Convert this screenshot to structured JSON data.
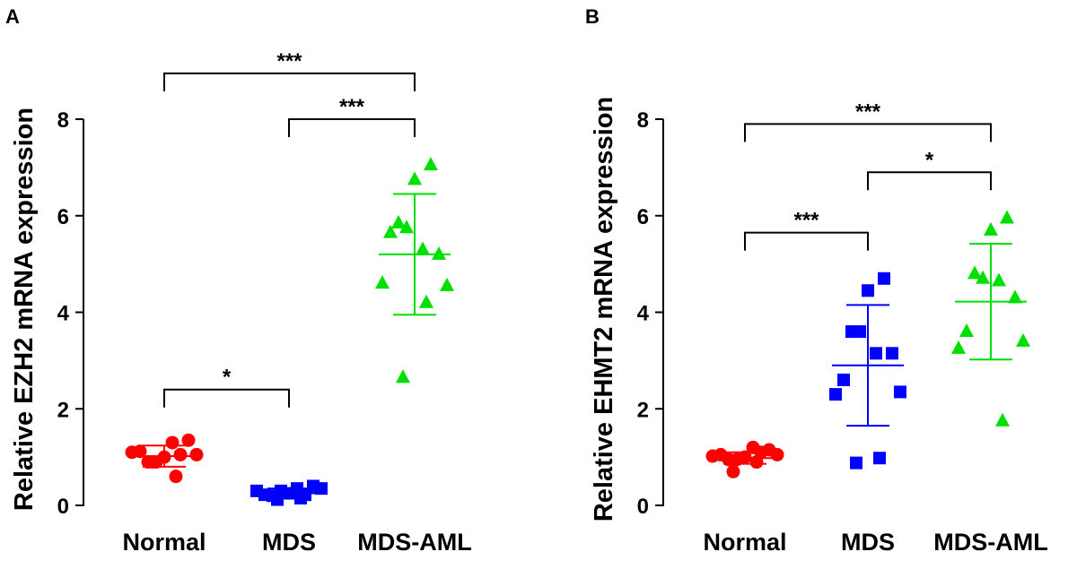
{
  "chart_data": [
    {
      "type": "scatter",
      "panel": "A",
      "ylabel": "Relative EZH2 mRNA expression",
      "xlabel": "",
      "ylim": [
        0,
        8
      ],
      "yticks": [
        0,
        2,
        4,
        6,
        8
      ],
      "categories": [
        "Normal",
        "MDS",
        "MDS-AML"
      ],
      "groups": [
        {
          "name": "Normal",
          "color": "#ff0000",
          "marker": "circle",
          "values": [
            1.0,
            1.05,
            0.9,
            0.9,
            1.3,
            1.35,
            1.12,
            1.05,
            1.1,
            0.6,
            0.9
          ],
          "mean": 1.02,
          "sd": 0.22
        },
        {
          "name": "MDS",
          "color": "#0000ff",
          "marker": "square",
          "values": [
            0.25,
            0.22,
            0.2,
            0.3,
            0.35,
            0.4,
            0.22,
            0.35,
            0.3,
            0.15,
            0.12
          ],
          "mean": 0.25,
          "sd": 0.1
        },
        {
          "name": "MDS-AML",
          "color": "#00e000",
          "marker": "triangle",
          "values": [
            6.75,
            7.05,
            5.85,
            5.75,
            5.3,
            5.2,
            5.65,
            4.55,
            4.6,
            4.2,
            2.65
          ],
          "mean": 5.2,
          "sd": 1.25
        }
      ],
      "comparisons": [
        {
          "from": "Normal",
          "to": "MDS",
          "label": "*",
          "y": 2.4
        },
        {
          "from": "MDS",
          "to": "MDS-AML",
          "label": "***",
          "y": 8.0
        },
        {
          "from": "Normal",
          "to": "MDS-AML",
          "label": "***",
          "y": 8.95
        }
      ]
    },
    {
      "type": "scatter",
      "panel": "B",
      "ylabel": "Relative EHMT2 mRNA expression",
      "xlabel": "",
      "ylim": [
        0,
        8
      ],
      "yticks": [
        0,
        2,
        4,
        6,
        8
      ],
      "categories": [
        "Normal",
        "MDS",
        "MDS-AML"
      ],
      "groups": [
        {
          "name": "Normal",
          "color": "#ff0000",
          "marker": "circle",
          "values": [
            1.0,
            1.1,
            0.95,
            0.95,
            1.2,
            1.15,
            1.05,
            1.05,
            1.02,
            0.9,
            0.7
          ],
          "mean": 0.98,
          "sd": 0.12
        },
        {
          "name": "MDS",
          "color": "#0000ff",
          "marker": "square",
          "values": [
            4.45,
            4.7,
            3.6,
            3.6,
            3.15,
            3.15,
            2.6,
            2.35,
            2.3,
            0.98,
            0.88
          ],
          "mean": 2.9,
          "sd": 1.25
        },
        {
          "name": "MDS-AML",
          "color": "#00e000",
          "marker": "triangle",
          "values": [
            5.7,
            5.95,
            4.8,
            4.7,
            4.65,
            4.3,
            3.6,
            3.4,
            3.25,
            1.75
          ],
          "mean": 4.22,
          "sd": 1.2
        }
      ],
      "comparisons": [
        {
          "from": "Normal",
          "to": "MDS",
          "label": "***",
          "y": 5.65
        },
        {
          "from": "MDS",
          "to": "MDS-AML",
          "label": "*",
          "y": 6.9
        },
        {
          "from": "Normal",
          "to": "MDS-AML",
          "label": "***",
          "y": 7.9
        }
      ]
    }
  ]
}
